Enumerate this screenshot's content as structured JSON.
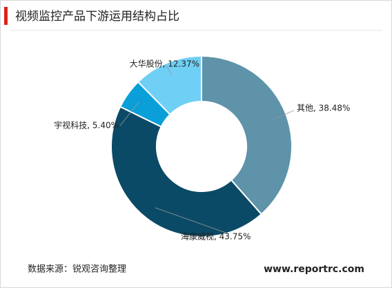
{
  "chart_data": {
    "type": "pie",
    "title": "视频监控产品下游运用结构占比",
    "values": [
      38.48,
      43.75,
      5.4,
      12.37
    ],
    "value_labels": [
      "其他, 38.48%",
      "海康威视, 43.75%",
      "宇视科技, 5.40%",
      "大华股份, 12.37%"
    ],
    "colors": [
      "#5e93aa",
      "#0b4a66",
      "#0a9fd8",
      "#6fcff4"
    ],
    "source": "数据来源：锐观咨询整理",
    "website": "www.reportrc.com"
  }
}
